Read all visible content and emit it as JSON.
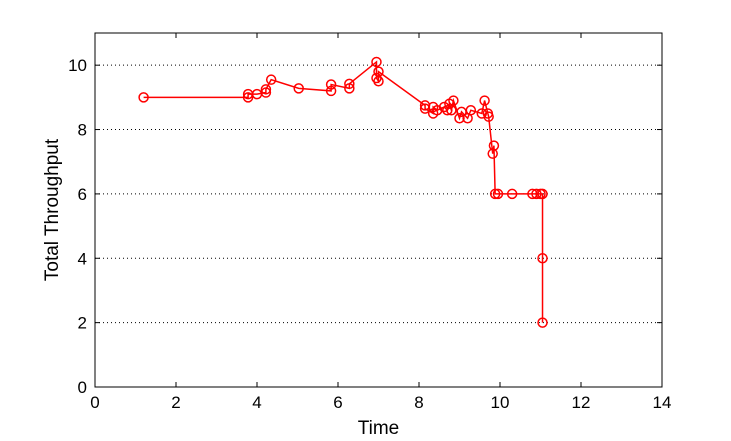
{
  "chart_data": {
    "type": "line",
    "title": "",
    "xlabel": "Time",
    "ylabel": "Total Throughput",
    "xlim": [
      0,
      14
    ],
    "ylim": [
      0,
      11
    ],
    "xticks": [
      0,
      2,
      4,
      6,
      8,
      10,
      12,
      14
    ],
    "yticks": [
      0,
      2,
      4,
      6,
      8,
      10
    ],
    "grid": "horizontal dotted",
    "legend": "none",
    "series": [
      {
        "color": "#ff0000",
        "marker": "circle",
        "x": [
          1.2,
          3.78,
          3.78,
          4.0,
          4.22,
          4.22,
          4.35,
          5.03,
          5.83,
          5.83,
          6.28,
          6.28,
          6.95,
          6.95,
          7.0,
          7.0,
          8.15,
          8.15,
          8.35,
          8.35,
          8.45,
          8.62,
          8.7,
          8.75,
          8.8,
          8.85,
          9.0,
          9.05,
          9.2,
          9.28,
          9.55,
          9.62,
          9.7,
          9.72,
          9.82,
          9.85,
          9.88,
          9.95,
          10.3,
          10.8,
          10.9,
          11.0,
          11.05,
          11.05,
          11.05
        ],
        "y": [
          9.0,
          9.0,
          9.1,
          9.1,
          9.15,
          9.25,
          9.55,
          9.28,
          9.2,
          9.4,
          9.28,
          9.42,
          10.1,
          9.6,
          9.5,
          9.8,
          8.75,
          8.65,
          8.5,
          8.7,
          8.6,
          8.7,
          8.6,
          8.8,
          8.6,
          8.9,
          8.35,
          8.55,
          8.35,
          8.6,
          8.5,
          8.9,
          8.5,
          8.4,
          7.25,
          7.5,
          6.0,
          6.0,
          6.0,
          6.0,
          6.0,
          6.0,
          6.0,
          4.0,
          2.0
        ]
      }
    ]
  }
}
